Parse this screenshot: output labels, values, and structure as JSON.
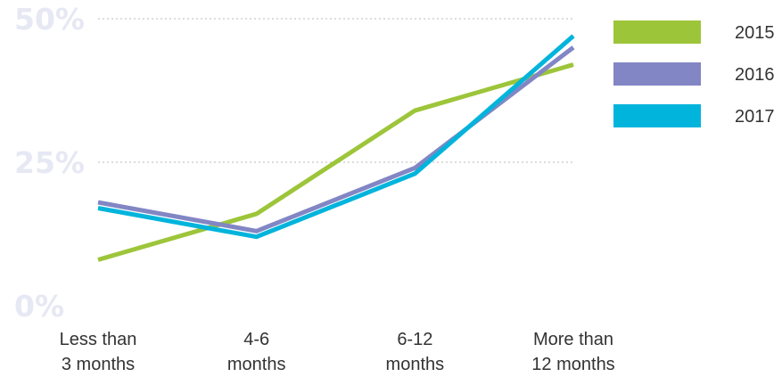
{
  "chart_data": {
    "type": "line",
    "categories": [
      [
        "Less than",
        "3 months"
      ],
      [
        "4-6",
        "months"
      ],
      [
        "6-12",
        "months"
      ],
      [
        "More than",
        "12 months"
      ]
    ],
    "series": [
      {
        "name": "2015",
        "color": "#9dc53a",
        "values": [
          8,
          16,
          34,
          42
        ]
      },
      {
        "name": "2016",
        "color": "#8286c4",
        "values": [
          18,
          13,
          24,
          45
        ]
      },
      {
        "name": "2017",
        "color": "#00b4dc",
        "values": [
          17,
          12,
          23,
          47
        ]
      }
    ],
    "yticks": [
      "0%",
      "25%",
      "50%"
    ],
    "ylim": [
      0,
      50
    ],
    "grid": true,
    "legend": "top-right"
  }
}
